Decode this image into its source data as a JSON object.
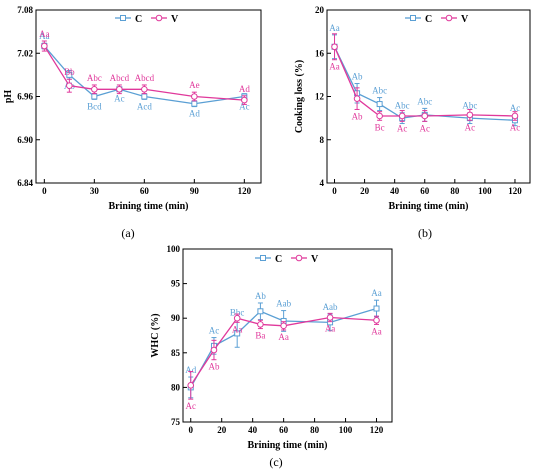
{
  "colors": {
    "C": "#5a9fd4",
    "V": "#e0389b"
  },
  "legend": [
    "C",
    "V"
  ],
  "chart_data": [
    {
      "type": "line",
      "panel_label": "(a)",
      "xlabel": "Brining time (min)",
      "ylabel": "pH",
      "xlim": [
        -5,
        130
      ],
      "ylim": [
        6.84,
        7.08
      ],
      "xticks": [
        "0",
        "30",
        "60",
        "90",
        "120"
      ],
      "yticks": [
        "6.84",
        "6.90",
        "6.96",
        "7.02",
        "7.08"
      ],
      "x": [
        0,
        15,
        30,
        45,
        60,
        90,
        120
      ],
      "series": [
        {
          "name": "C",
          "values": [
            7.03,
            6.99,
            6.96,
            6.97,
            6.96,
            6.95,
            6.96
          ],
          "errors": [
            0.004,
            0.006,
            0.004,
            0.003,
            0.004,
            0.004,
            0.004
          ],
          "labels": [
            "Aa",
            "Ab",
            "Bcd",
            "Ac",
            "Acd",
            "Ad",
            "Ac"
          ],
          "label_pos": [
            "above",
            "below",
            "below",
            "below",
            "below",
            "below",
            "below"
          ]
        },
        {
          "name": "V",
          "values": [
            7.03,
            6.975,
            6.97,
            6.97,
            6.97,
            6.96,
            6.955
          ],
          "errors": [
            0.007,
            0.009,
            0.006,
            0.006,
            0.006,
            0.006,
            0.006
          ],
          "labels": [
            "Aa",
            "Bb",
            "Abc",
            "Abcd",
            "Abcd",
            "Ae",
            "Ad"
          ],
          "label_pos": [
            "above",
            "above",
            "above",
            "above",
            "above",
            "above",
            "above"
          ]
        }
      ]
    },
    {
      "type": "line",
      "panel_label": "(b)",
      "xlabel": "Brining time (min)",
      "ylabel": "Cooking loss (%)",
      "xlim": [
        -5,
        130
      ],
      "ylim": [
        4,
        20
      ],
      "xticks": [
        "0",
        "20",
        "40",
        "60",
        "80",
        "100",
        "120"
      ],
      "yticks": [
        "4",
        "8",
        "12",
        "16",
        "20"
      ],
      "x": [
        0,
        15,
        30,
        45,
        60,
        90,
        120
      ],
      "series": [
        {
          "name": "C",
          "values": [
            16.6,
            12.3,
            11.3,
            10.0,
            10.3,
            10.0,
            9.8
          ],
          "errors": [
            1.1,
            0.9,
            0.6,
            0.5,
            0.6,
            0.5,
            0.5
          ],
          "labels": [
            "Aa",
            "Ab",
            "Abc",
            "Abc",
            "Abc",
            "Abc",
            "Ac"
          ],
          "label_pos": [
            "above",
            "above",
            "above",
            "above",
            "above",
            "above",
            "above"
          ]
        },
        {
          "name": "V",
          "values": [
            16.6,
            11.8,
            10.2,
            10.2,
            10.2,
            10.3,
            10.2
          ],
          "errors": [
            1.2,
            1.0,
            0.4,
            0.5,
            0.5,
            0.5,
            0.4
          ],
          "labels": [
            "Aa",
            "Ab",
            "Bc",
            "Ac",
            "Ac",
            "Ac",
            "Ac"
          ],
          "label_pos": [
            "below",
            "below",
            "below",
            "below",
            "below",
            "below",
            "below"
          ]
        }
      ]
    },
    {
      "type": "line",
      "panel_label": "(c)",
      "xlabel": "Brining time (min)",
      "ylabel": "WHC (%)",
      "xlim": [
        -5,
        130
      ],
      "ylim": [
        75,
        100
      ],
      "xticks": [
        "0",
        "20",
        "40",
        "60",
        "80",
        "100",
        "120"
      ],
      "yticks": [
        "75",
        "80",
        "85",
        "90",
        "95",
        "100"
      ],
      "x": [
        0,
        15,
        30,
        45,
        60,
        90,
        120
      ],
      "series": [
        {
          "name": "C",
          "values": [
            80.0,
            86.0,
            87.8,
            91.0,
            89.6,
            89.4,
            91.4
          ],
          "errors": [
            1.5,
            1.2,
            2.0,
            1.2,
            1.5,
            1.2,
            1.2
          ],
          "labels": [
            "Ad",
            "Ac",
            "Bbc",
            "Ab",
            "Aab",
            "Aab",
            "Aa"
          ],
          "label_pos": [
            "above",
            "above",
            "above",
            "above",
            "above",
            "above",
            "above"
          ]
        },
        {
          "name": "V",
          "values": [
            80.3,
            85.4,
            90.0,
            89.1,
            88.9,
            90.1,
            89.7
          ],
          "errors": [
            2.0,
            1.4,
            0.6,
            0.6,
            0.6,
            0.6,
            0.6
          ],
          "labels": [
            "Ac",
            "Ab",
            "Aa",
            "Ba",
            "Aa",
            "Aa",
            "Aa"
          ],
          "label_pos": [
            "below",
            "below",
            "below",
            "below",
            "below",
            "below",
            "below"
          ]
        }
      ]
    }
  ]
}
